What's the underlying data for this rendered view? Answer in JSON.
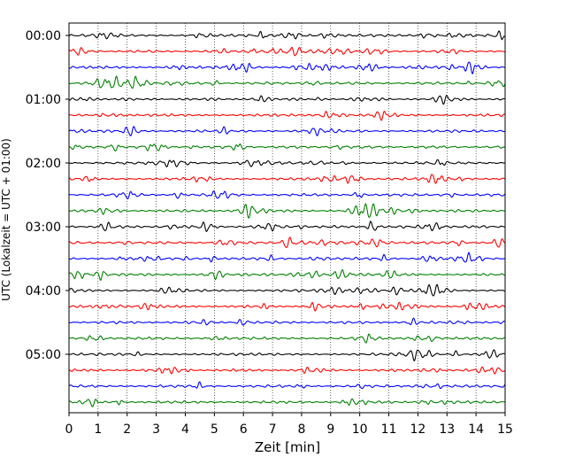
{
  "chart_data": {
    "type": "line",
    "subtype": "helicorder",
    "title": "",
    "xlabel": "Zeit  [min]",
    "ylabel": "UTC (Lokalzeit = UTC + 01:00)",
    "xlim": [
      0,
      15
    ],
    "x_ticks": [
      "0",
      "1",
      "2",
      "3",
      "4",
      "5",
      "6",
      "7",
      "8",
      "9",
      "10",
      "11",
      "12",
      "13",
      "14",
      "15"
    ],
    "y_tick_labels": [
      "00:00",
      "01:00",
      "02:00",
      "03:00",
      "04:00",
      "05:00"
    ],
    "trace_interval_minutes": 15,
    "trace_count": 24,
    "grid": "vertical dotted lines at each minute",
    "trace_colors": [
      "#000000",
      "#ff0000",
      "#0000ff",
      "#008000"
    ],
    "series": [
      {
        "color": "#000000",
        "start_times_utc": [
          "00:00",
          "01:00",
          "02:00",
          "03:00",
          "04:00",
          "05:00"
        ]
      },
      {
        "color": "#ff0000",
        "start_times_utc": [
          "00:15",
          "01:15",
          "02:15",
          "03:15",
          "04:15",
          "05:15"
        ]
      },
      {
        "color": "#0000ff",
        "start_times_utc": [
          "00:30",
          "01:30",
          "02:30",
          "03:30",
          "04:30",
          "05:30"
        ]
      },
      {
        "color": "#008000",
        "start_times_utc": [
          "00:45",
          "01:45",
          "02:45",
          "03:45",
          "04:45",
          "05:45"
        ]
      }
    ]
  }
}
